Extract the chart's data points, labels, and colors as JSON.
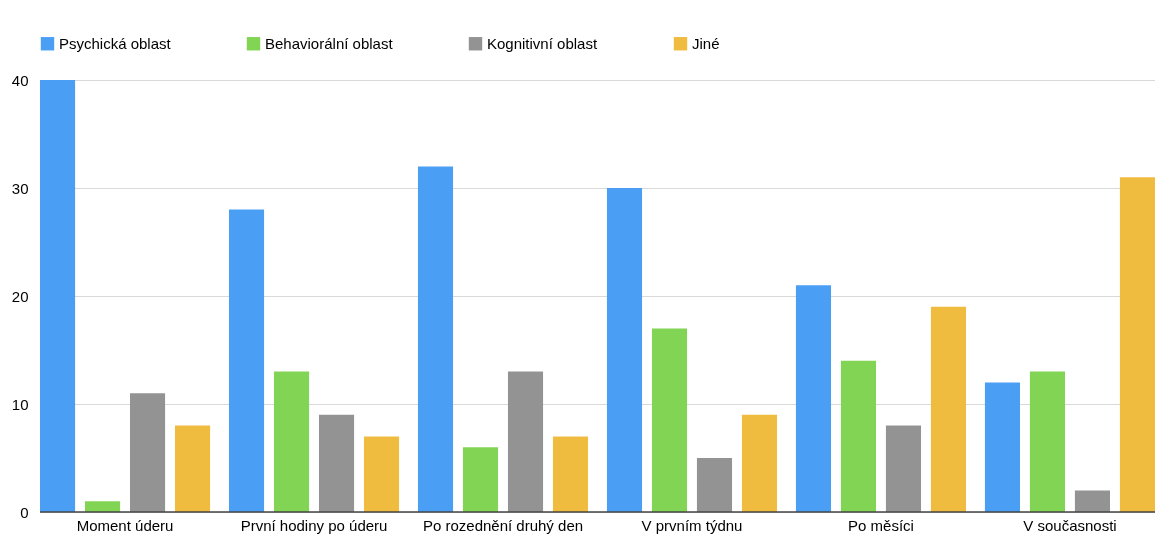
{
  "chart_data": {
    "type": "bar",
    "categories": [
      "Moment úderu",
      "První hodiny po úderu",
      "Po rozednění druhý den",
      "V prvním týdnu",
      "Po měsíci",
      "V současnosti"
    ],
    "series": [
      {
        "name": "Psychická oblast",
        "color": "#4a9ff5",
        "values": [
          40,
          28,
          32,
          30,
          21,
          12
        ]
      },
      {
        "name": "Behaviorální oblast",
        "color": "#82d454",
        "values": [
          1,
          13,
          6,
          17,
          14,
          13
        ]
      },
      {
        "name": "Kognitivní oblast",
        "color": "#939393",
        "values": [
          11,
          9,
          13,
          5,
          8,
          2
        ]
      },
      {
        "name": "Jiné",
        "color": "#efbc40",
        "values": [
          8,
          7,
          7,
          9,
          19,
          31
        ]
      }
    ],
    "ylim": [
      0,
      40
    ],
    "yticks": [
      0,
      10,
      20,
      30,
      40
    ],
    "grid": "y",
    "legend": "top"
  }
}
